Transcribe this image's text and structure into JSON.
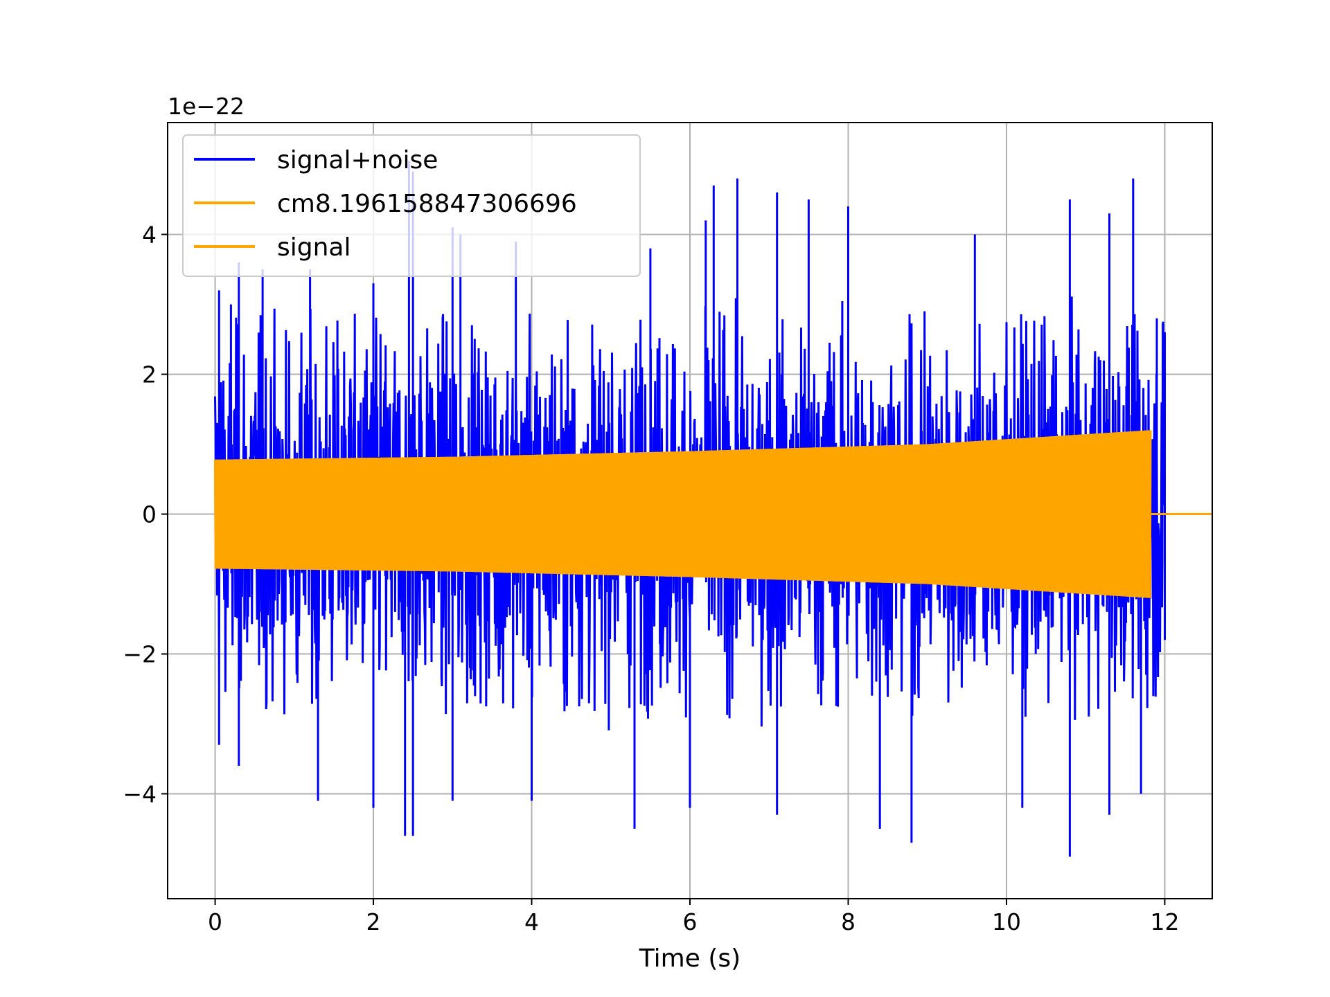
{
  "chart_data": {
    "type": "line",
    "xlabel": "Time (s)",
    "ylabel": "",
    "y_offset_text": "1e−22",
    "xlim": [
      -0.6,
      12.6
    ],
    "ylim": [
      -5.5,
      5.6
    ],
    "x_ticks": [
      0,
      2,
      4,
      6,
      8,
      10,
      12
    ],
    "x_tick_labels": [
      "0",
      "2",
      "4",
      "6",
      "8",
      "10",
      "12"
    ],
    "y_ticks": [
      -4,
      -2,
      0,
      2,
      4
    ],
    "y_tick_labels": [
      "−4",
      "−2",
      "0",
      "2",
      "4"
    ],
    "grid": true,
    "legend_placement": "upper left",
    "series": [
      {
        "name": "signal+noise",
        "color": "#0000ff",
        "x_range": [
          0,
          12
        ],
        "envelope_typical": 2.3,
        "peaks_max": [
          [
            0.05,
            3.2
          ],
          [
            0.2,
            3.0
          ],
          [
            0.3,
            3.6
          ],
          [
            0.6,
            3.5
          ],
          [
            1.2,
            3.5
          ],
          [
            2.0,
            3.3
          ],
          [
            2.45,
            5.05
          ],
          [
            2.5,
            4.9
          ],
          [
            3.0,
            4.1
          ],
          [
            3.1,
            4.0
          ],
          [
            3.8,
            3.9
          ],
          [
            5.5,
            3.8
          ],
          [
            6.2,
            4.2
          ],
          [
            6.3,
            4.7
          ],
          [
            6.6,
            4.8
          ],
          [
            7.1,
            4.6
          ],
          [
            7.5,
            4.5
          ],
          [
            8.0,
            4.4
          ],
          [
            9.6,
            4.0
          ],
          [
            10.8,
            4.5
          ],
          [
            11.3,
            4.3
          ],
          [
            11.6,
            4.8
          ],
          [
            11.9,
            2.8
          ],
          [
            12.0,
            2.6
          ]
        ],
        "peaks_min": [
          [
            0.05,
            -3.3
          ],
          [
            0.3,
            -3.6
          ],
          [
            1.3,
            -4.1
          ],
          [
            2.0,
            -4.2
          ],
          [
            2.4,
            -4.6
          ],
          [
            2.5,
            -4.6
          ],
          [
            3.0,
            -4.1
          ],
          [
            4.0,
            -4.1
          ],
          [
            5.3,
            -4.5
          ],
          [
            6.0,
            -4.2
          ],
          [
            7.1,
            -4.3
          ],
          [
            8.4,
            -4.5
          ],
          [
            8.8,
            -4.7
          ],
          [
            10.2,
            -4.2
          ],
          [
            10.8,
            -4.9
          ],
          [
            11.3,
            -4.3
          ],
          [
            11.7,
            -4.0
          ],
          [
            12.0,
            -1.8
          ]
        ]
      },
      {
        "name": "cm8.196158847306696",
        "color": "#ffa500",
        "x_range": [
          0,
          11.82
        ],
        "envelope": [
          [
            0,
            0.78
          ],
          [
            3,
            0.82
          ],
          [
            6,
            0.9
          ],
          [
            9,
            1.0
          ],
          [
            11.82,
            1.2
          ]
        ],
        "after_end_value": 0
      },
      {
        "name": "signal",
        "color": "#ffa500",
        "x_range": [
          0,
          11.82
        ],
        "envelope": [
          [
            0,
            0.78
          ],
          [
            3,
            0.82
          ],
          [
            6,
            0.9
          ],
          [
            9,
            1.0
          ],
          [
            11.82,
            1.2
          ]
        ],
        "after_end_value": 0
      }
    ]
  }
}
